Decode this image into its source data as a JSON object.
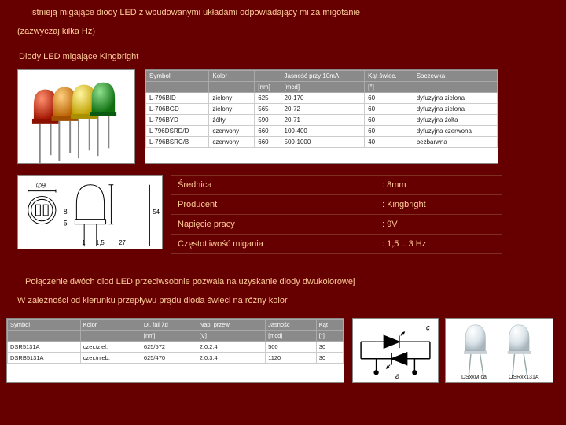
{
  "intro": {
    "line1": "Istnieją migające diody LED z wbudowanymi układami odpowiadający mi za migotanie",
    "line2": "(zazwyczaj kilka Hz)"
  },
  "section_title": "Diody LED migające Kingbright",
  "spec_top": {
    "headers": [
      "Symbol",
      "Kolor",
      "I",
      "Jasność przy 10mA",
      "Kąt świec.",
      "Soczewka"
    ],
    "unit_row": [
      "",
      "",
      "[nm]",
      "[mcd]",
      "[°]",
      ""
    ],
    "rows": [
      [
        "L-796BID",
        "zielony",
        "625",
        "20-170",
        "60",
        "dyfuzyjna zielona"
      ],
      [
        "L-706BGD",
        "zielony",
        "565",
        "20-72",
        "60",
        "dyfuzyjna zielona"
      ],
      [
        "L-796BYD",
        "żółty",
        "590",
        "20-71",
        "60",
        "dyfuzyjna żółta"
      ],
      [
        "L 796DSRD/D",
        "czerwony",
        "660",
        "100-400",
        "60",
        "dyfuzyjna czerwona"
      ],
      [
        "L-796BSRC/B",
        "czerwony",
        "660",
        "500-1000",
        "40",
        "bezbarwna"
      ]
    ]
  },
  "props": [
    {
      "label": "Średnica",
      "value": ": 8mm"
    },
    {
      "label": "Producent",
      "value": ": Kingbright"
    },
    {
      "label": "Napięcie pracy",
      "value": ": 9V"
    },
    {
      "label": "Częstotliwość migania",
      "value": ": 1,5 .. 3 Hz"
    }
  ],
  "para": {
    "line1": "Połączenie dwóch diod LED przeciwsobnie pozwala na uzyskanie diody dwukolorowej",
    "line2": "W zależności od kierunku przepływu prądu dioda świeci na różny kolor"
  },
  "spec_bot": {
    "headers": [
      "Symbol",
      "Kolor",
      "Dł. fali λd",
      "Nap. przew.",
      "Jasność",
      "Kąt"
    ],
    "unit_row": [
      "",
      "",
      "[nm]",
      "[V]",
      "[mcd]",
      "[°]"
    ],
    "rows": [
      [
        "DSR5131A",
        "czer./ziel.",
        "625/572",
        "2,0;2,4",
        "500",
        "30"
      ],
      [
        "DSRB5131A",
        "czer./nieb.",
        "625/470",
        "2,0;3,4",
        "1120",
        "30"
      ]
    ]
  },
  "photo_labels": {
    "left": "DSxxM ca",
    "right": "OSRxx131A"
  },
  "led_colors": [
    "#d43a1a",
    "#e68a00",
    "#f2d21b",
    "#2fae3a"
  ],
  "dim_labels": {
    "dia": "∅9",
    "h1": "8",
    "h2": "5",
    "w1": "1",
    "w2": "1,5",
    "w3": "27",
    "s": "54"
  }
}
